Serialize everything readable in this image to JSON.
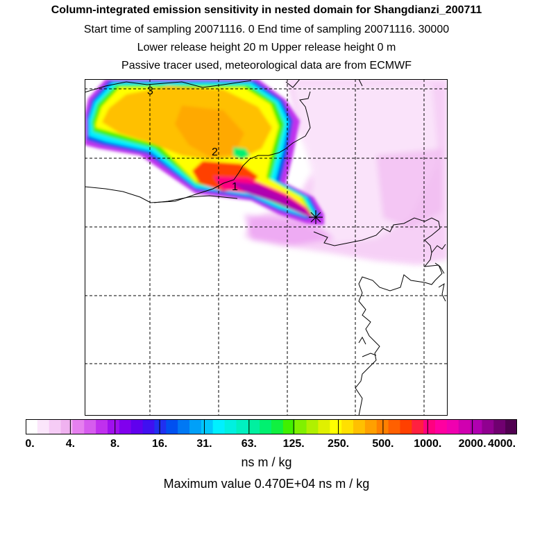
{
  "header": {
    "title": "Column-integrated emission sensitivity in nested domain for Shangdianzi_200711",
    "sampling": "Start time of sampling 20071116.     0     End time of sampling 20071116. 30000",
    "release": "Lower release height   20 m           Upper release height    0 m",
    "tracer": "Passive tracer used, meteorological data are from ECMWF"
  },
  "map": {
    "trajectory_labels": [
      "1",
      "2",
      "3"
    ],
    "receptor_marker": "star-marker"
  },
  "colorbar": {
    "tick_labels": [
      "0.",
      "4.",
      "8.",
      "16.",
      "31.",
      "63.",
      "125.",
      "250.",
      "500.",
      "1000.",
      "2000.",
      "4000."
    ],
    "colors": [
      "#ffffff",
      "#fbe6fb",
      "#f6ccf6",
      "#f0b2f0",
      "#e680ef",
      "#d65cee",
      "#c030ee",
      "#a010ee",
      "#8000ee",
      "#6000ee",
      "#4010f0",
      "#2030f0",
      "#0050f0",
      "#0078f4",
      "#00a0f8",
      "#00c8fc",
      "#00f0ff",
      "#00f0e0",
      "#00f0c0",
      "#00f0a0",
      "#00f070",
      "#10f040",
      "#40f000",
      "#80f000",
      "#b0f000",
      "#e0f000",
      "#ffff00",
      "#ffe000",
      "#ffc000",
      "#ffa000",
      "#ff8000",
      "#ff6000",
      "#ff4000",
      "#ff2040",
      "#ff0080",
      "#ff00a0",
      "#f000b0",
      "#d000b0",
      "#b000b0",
      "#900090",
      "#700070",
      "#500050"
    ],
    "unit": "ns m / kg",
    "max_label": "Maximum value  0.470E+04 ns m / kg"
  }
}
